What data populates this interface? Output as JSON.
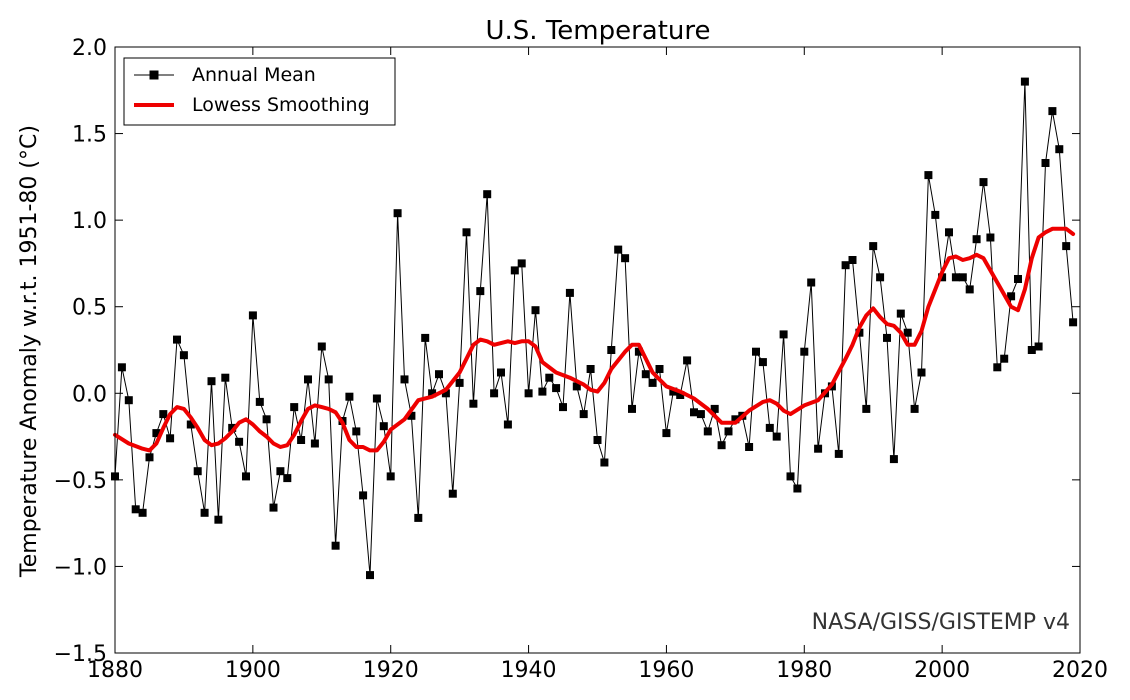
{
  "chart_data": {
    "type": "line",
    "title": "U.S. Temperature",
    "xlabel": "",
    "ylabel": "Temperature Anomaly w.r.t. 1951-80 (°C)",
    "xlim": [
      1880,
      2020
    ],
    "ylim": [
      -1.5,
      2.0
    ],
    "xticks": [
      1880,
      1900,
      1920,
      1940,
      1960,
      1980,
      2000,
      2020
    ],
    "xtick_labels": [
      "1880",
      "1900",
      "1920",
      "1940",
      "1960",
      "1980",
      "2000",
      "2020"
    ],
    "yticks": [
      -1.5,
      -1.0,
      -0.5,
      0.0,
      0.5,
      1.0,
      1.5,
      2.0
    ],
    "ytick_labels": [
      "−1.5",
      "−1.0",
      "−0.5",
      "0.0",
      "0.5",
      "1.0",
      "1.5",
      "2.0"
    ],
    "grid": false,
    "legend_position": "top-left",
    "annotation": "NASA/GISS/GISTEMP v4",
    "colors": {
      "annual": "#000000",
      "smoothing": "#ee0000"
    },
    "series": [
      {
        "name": "Annual Mean",
        "style": "line-with-square-markers",
        "x": [
          1880,
          1881,
          1882,
          1883,
          1884,
          1885,
          1886,
          1887,
          1888,
          1889,
          1890,
          1891,
          1892,
          1893,
          1894,
          1895,
          1896,
          1897,
          1898,
          1899,
          1900,
          1901,
          1902,
          1903,
          1904,
          1905,
          1906,
          1907,
          1908,
          1909,
          1910,
          1911,
          1912,
          1913,
          1914,
          1915,
          1916,
          1917,
          1918,
          1919,
          1920,
          1921,
          1922,
          1923,
          1924,
          1925,
          1926,
          1927,
          1928,
          1929,
          1930,
          1931,
          1932,
          1933,
          1934,
          1935,
          1936,
          1937,
          1938,
          1939,
          1940,
          1941,
          1942,
          1943,
          1944,
          1945,
          1946,
          1947,
          1948,
          1949,
          1950,
          1951,
          1952,
          1953,
          1954,
          1955,
          1956,
          1957,
          1958,
          1959,
          1960,
          1961,
          1962,
          1963,
          1964,
          1965,
          1966,
          1967,
          1968,
          1969,
          1970,
          1971,
          1972,
          1973,
          1974,
          1975,
          1976,
          1977,
          1978,
          1979,
          1980,
          1981,
          1982,
          1983,
          1984,
          1985,
          1986,
          1987,
          1988,
          1989,
          1990,
          1991,
          1992,
          1993,
          1994,
          1995,
          1996,
          1997,
          1998,
          1999,
          2000,
          2001,
          2002,
          2003,
          2004,
          2005,
          2006,
          2007,
          2008,
          2009,
          2010,
          2011,
          2012,
          2013,
          2014,
          2015,
          2016,
          2017,
          2018,
          2019
        ],
        "values": [
          -0.48,
          0.15,
          -0.04,
          -0.67,
          -0.69,
          -0.37,
          -0.23,
          -0.12,
          -0.26,
          0.31,
          0.22,
          -0.18,
          -0.45,
          -0.69,
          0.07,
          -0.73,
          0.09,
          -0.2,
          -0.28,
          -0.48,
          0.45,
          -0.05,
          -0.15,
          -0.66,
          -0.45,
          -0.49,
          -0.08,
          -0.27,
          0.08,
          -0.29,
          0.27,
          0.08,
          -0.88,
          -0.16,
          -0.02,
          -0.22,
          -0.59,
          -1.05,
          -0.03,
          -0.19,
          -0.48,
          1.04,
          0.08,
          -0.13,
          -0.72,
          0.32,
          0.0,
          0.11,
          0.0,
          -0.58,
          0.06,
          0.93,
          -0.06,
          0.59,
          1.15,
          0.0,
          0.12,
          -0.18,
          0.71,
          0.75,
          0.0,
          0.48,
          0.01,
          0.09,
          0.03,
          -0.08,
          0.58,
          0.04,
          -0.12,
          0.14,
          -0.27,
          -0.4,
          0.25,
          0.83,
          0.78,
          -0.09,
          0.24,
          0.11,
          0.06,
          0.14,
          -0.23,
          0.01,
          -0.01,
          0.19,
          -0.11,
          -0.12,
          -0.22,
          -0.09,
          -0.3,
          -0.22,
          -0.15,
          -0.13,
          -0.31,
          0.24,
          0.18,
          -0.2,
          -0.25,
          0.34,
          -0.48,
          -0.55,
          0.24,
          0.64,
          -0.32,
          0.0,
          0.04,
          -0.35,
          0.74,
          0.77,
          0.35,
          -0.09,
          0.85,
          0.67,
          0.32,
          -0.38,
          0.46,
          0.35,
          -0.09,
          0.12,
          1.26,
          1.03,
          0.67,
          0.93,
          0.67,
          0.67,
          0.6,
          0.89,
          1.22,
          0.9,
          0.15,
          0.2,
          0.56,
          0.66,
          1.8,
          0.25,
          0.27,
          1.33,
          1.63,
          1.41,
          0.85,
          0.41
        ]
      },
      {
        "name": "Lowess Smoothing",
        "style": "thick-line",
        "x": [
          1880,
          1882,
          1884,
          1885,
          1886,
          1887,
          1888,
          1889,
          1890,
          1891,
          1892,
          1893,
          1894,
          1895,
          1896,
          1897,
          1898,
          1899,
          1900,
          1901,
          1902,
          1903,
          1904,
          1905,
          1906,
          1907,
          1908,
          1909,
          1910,
          1911,
          1912,
          1913,
          1914,
          1915,
          1916,
          1917,
          1918,
          1919,
          1920,
          1922,
          1924,
          1926,
          1928,
          1930,
          1931,
          1932,
          1933,
          1934,
          1935,
          1936,
          1937,
          1938,
          1939,
          1940,
          1941,
          1942,
          1944,
          1946,
          1948,
          1949,
          1950,
          1951,
          1952,
          1953,
          1954,
          1955,
          1956,
          1958,
          1960,
          1962,
          1964,
          1966,
          1968,
          1970,
          1972,
          1974,
          1975,
          1976,
          1977,
          1978,
          1980,
          1982,
          1984,
          1986,
          1987,
          1988,
          1989,
          1990,
          1991,
          1992,
          1993,
          1994,
          1995,
          1996,
          1997,
          1998,
          1999,
          2000,
          2001,
          2002,
          2003,
          2004,
          2005,
          2006,
          2008,
          2009,
          2010,
          2011,
          2012,
          2013,
          2014,
          2015,
          2016,
          2017,
          2018,
          2019
        ],
        "values": [
          -0.24,
          -0.29,
          -0.32,
          -0.33,
          -0.29,
          -0.2,
          -0.12,
          -0.08,
          -0.09,
          -0.14,
          -0.2,
          -0.27,
          -0.3,
          -0.29,
          -0.26,
          -0.22,
          -0.17,
          -0.15,
          -0.18,
          -0.22,
          -0.25,
          -0.29,
          -0.31,
          -0.3,
          -0.24,
          -0.16,
          -0.09,
          -0.07,
          -0.08,
          -0.09,
          -0.11,
          -0.17,
          -0.27,
          -0.31,
          -0.31,
          -0.33,
          -0.33,
          -0.28,
          -0.21,
          -0.15,
          -0.04,
          -0.02,
          0.02,
          0.12,
          0.2,
          0.28,
          0.31,
          0.3,
          0.28,
          0.29,
          0.3,
          0.29,
          0.3,
          0.3,
          0.27,
          0.18,
          0.12,
          0.09,
          0.05,
          0.02,
          0.01,
          0.06,
          0.14,
          0.19,
          0.24,
          0.28,
          0.28,
          0.12,
          0.04,
          0.01,
          -0.03,
          -0.09,
          -0.17,
          -0.17,
          -0.1,
          -0.05,
          -0.04,
          -0.06,
          -0.1,
          -0.12,
          -0.07,
          -0.04,
          0.05,
          0.2,
          0.28,
          0.38,
          0.45,
          0.49,
          0.44,
          0.4,
          0.39,
          0.35,
          0.28,
          0.28,
          0.36,
          0.5,
          0.6,
          0.7,
          0.78,
          0.79,
          0.77,
          0.78,
          0.8,
          0.78,
          0.64,
          0.57,
          0.5,
          0.48,
          0.6,
          0.78,
          0.9,
          0.93,
          0.95,
          0.95,
          0.95,
          0.92
        ]
      }
    ]
  }
}
